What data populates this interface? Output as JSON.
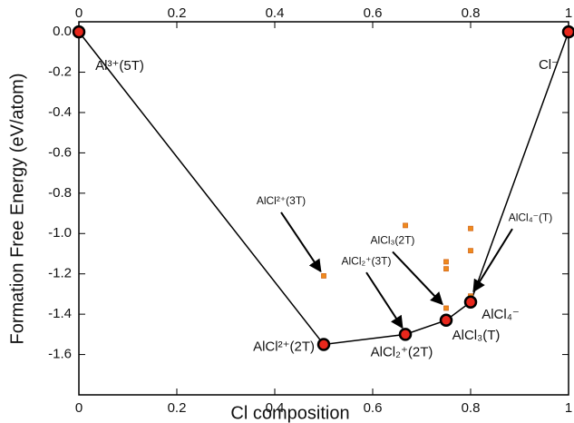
{
  "chart_data": {
    "type": "scatter",
    "xlabel": "Cl composition",
    "ylabel": "Formation Free Energy (eV/atom)",
    "xlim": [
      0,
      1
    ],
    "ylim": [
      -1.8,
      0.05
    ],
    "xticks": [
      0,
      0.2,
      0.4,
      0.6,
      0.8,
      1
    ],
    "yticks": [
      {
        "value": 0,
        "label": "0.0"
      },
      -0.2,
      -0.4,
      -0.6,
      -0.8,
      {
        "value": -1,
        "label": "-1.0"
      },
      -1.2,
      -1.4,
      -1.6
    ],
    "series": [
      {
        "color": "#e8271c",
        "line": true,
        "x": [
          0,
          0.5,
          0.6667,
          0.75,
          0.8,
          1
        ],
        "values": [
          0,
          -1.55,
          -1.5,
          -1.43,
          -1.34,
          0
        ],
        "labels": [
          "Al³⁺(5T)",
          "AlCl²⁺(2T)",
          "AlCl₂⁺(2T)",
          "AlCl₃(T)",
          "AlCl₄⁻",
          "Cl⁻"
        ]
      },
      {
        "color": "#f08a1c",
        "line": false,
        "label_color": "#2b3a9e",
        "x": [
          0.5,
          0.6667,
          0.6667,
          0.75,
          0.75,
          0.75,
          0.8,
          0.8,
          0.8
        ],
        "values": [
          -1.21,
          -0.96,
          -1.49,
          -1.14,
          -1.175,
          -1.37,
          -0.975,
          -1.085,
          -1.31
        ],
        "labels": [
          "AlCl²⁺(3T)",
          null,
          "AlCl₂⁺(3T)",
          null,
          null,
          "AlCl₃(2T)",
          null,
          null,
          "AlCl₄⁻(T)"
        ]
      }
    ]
  }
}
